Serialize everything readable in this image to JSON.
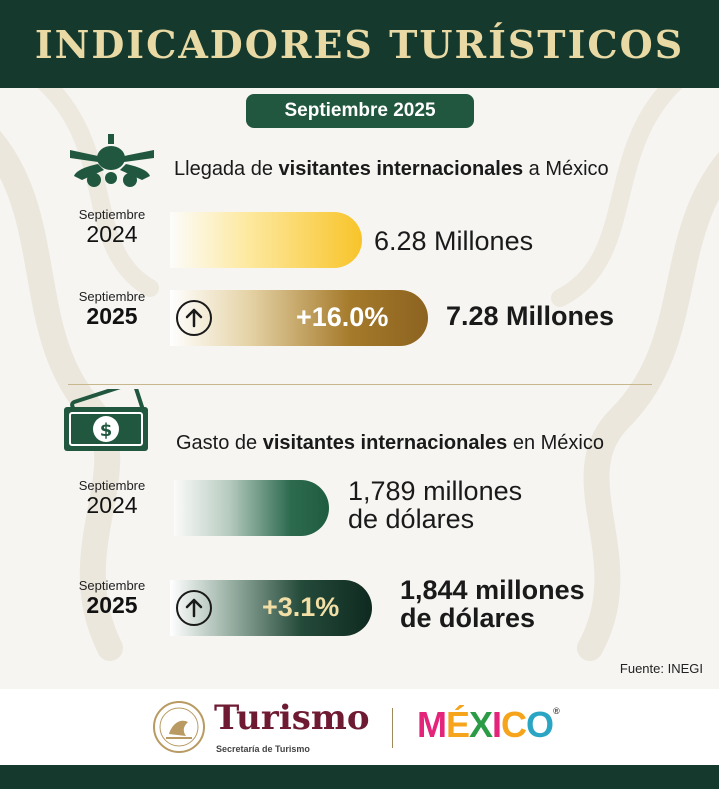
{
  "header": {
    "title": "INDICADORES TURÍSTICOS"
  },
  "period_label": "Septiembre 2025",
  "arrivals": {
    "title_pre": "Llegada de ",
    "title_bold": "visitantes internacionales",
    "title_post": " a México",
    "icon": "airplane-icon",
    "row_2024": {
      "month": "Septiembre",
      "year": "2024",
      "value": "6.28 Millones"
    },
    "row_2025": {
      "month": "Septiembre",
      "year": "2025",
      "value": "7.28 Millones",
      "change": "+16.0%"
    }
  },
  "spending": {
    "title_pre": "Gasto de ",
    "title_bold": "visitantes internacionales",
    "title_post": " en México",
    "icon": "dollar-bill-icon",
    "row_2024": {
      "month": "Septiembre",
      "year": "2024",
      "value_line1": "1,789 millones",
      "value_line2": "de dólares"
    },
    "row_2025": {
      "month": "Septiembre",
      "year": "2025",
      "value_line1": "1,844 millones",
      "value_line2": "de dólares",
      "change": "+3.1%"
    }
  },
  "source": "Fuente: INEGI",
  "footer": {
    "brand": "Turismo",
    "brand_sub": "Secretaría de Turismo",
    "country_letters": [
      "M",
      "É",
      "X",
      "I",
      "C",
      "O"
    ],
    "registered": "®"
  },
  "colors": {
    "primary_green": "#153a2d",
    "gold": "#a57a2b",
    "yellow": "#f8c42a",
    "turismo_maroon": "#6e1a33",
    "mexico_letters": [
      "#e4247a",
      "#f6a41c",
      "#2b9b46",
      "#e4247a",
      "#f6a41c",
      "#2aa6c4"
    ]
  }
}
